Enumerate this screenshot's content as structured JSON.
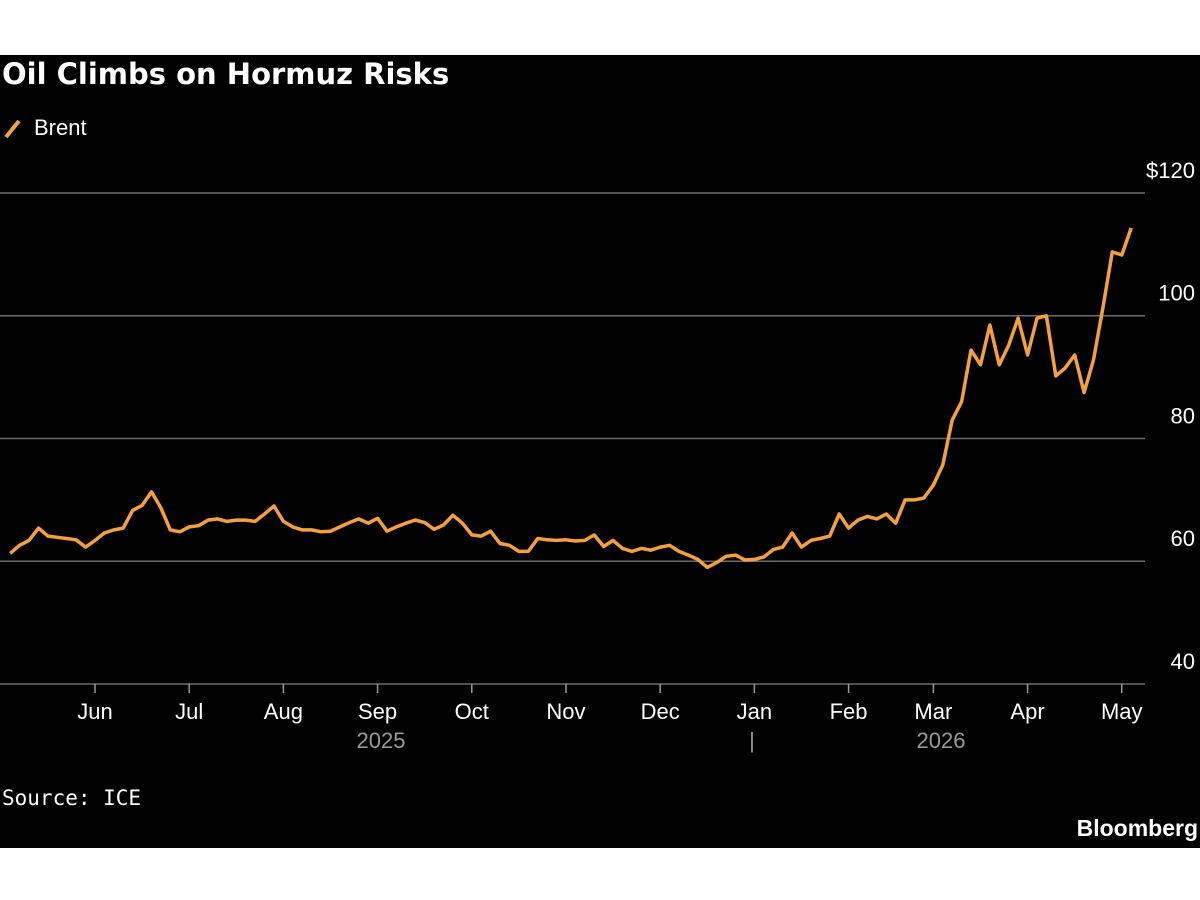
{
  "chart_data": {
    "type": "line",
    "title": "Oil Climbs on Hormuz Risks",
    "series": [
      {
        "name": "Brent",
        "color": "#f5a03e",
        "values": [
          61.3,
          62.6,
          63.4,
          65.4,
          64.1,
          63.9,
          63.7,
          63.5,
          62.3,
          63.4,
          64.6,
          65.1,
          65.4,
          68.3,
          69.1,
          71.3,
          68.7,
          65.1,
          64.8,
          65.6,
          65.8,
          66.7,
          66.9,
          66.5,
          66.7,
          66.7,
          66.5,
          67.7,
          69.0,
          66.5,
          65.6,
          65.1,
          65.1,
          64.8,
          64.9,
          65.6,
          66.3,
          66.9,
          66.2,
          67.0,
          64.9,
          65.6,
          66.2,
          66.7,
          66.3,
          65.2,
          65.9,
          67.5,
          66.2,
          64.3,
          64.1,
          64.9,
          62.9,
          62.6,
          61.6,
          61.6,
          63.7,
          63.5,
          63.4,
          63.5,
          63.3,
          63.4,
          64.3,
          62.4,
          63.4,
          62.1,
          61.6,
          62.1,
          61.8,
          62.3,
          62.6,
          61.6,
          61.0,
          60.3,
          59.0,
          59.8,
          60.8,
          61.0,
          60.2,
          60.3,
          60.7,
          61.9,
          62.3,
          64.6,
          62.3,
          63.4,
          63.7,
          64.1,
          67.7,
          65.4,
          66.7,
          67.3,
          66.9,
          67.7,
          66.2,
          70.0,
          70.0,
          70.3,
          72.4,
          75.7,
          83.0,
          86.0,
          94.4,
          92.0,
          98.5,
          92.0,
          95.2,
          99.6,
          93.6,
          99.6,
          100.0,
          90.2,
          91.5,
          93.6,
          87.5,
          92.8,
          101.3,
          110.4,
          109.9,
          114.3
        ]
      }
    ],
    "categories": [
      null,
      null,
      null,
      null,
      null,
      null,
      null,
      null,
      null,
      "Jun",
      null,
      null,
      null,
      null,
      null,
      null,
      null,
      null,
      null,
      "Jul",
      null,
      null,
      null,
      null,
      null,
      null,
      null,
      null,
      null,
      "Aug",
      null,
      null,
      null,
      null,
      null,
      null,
      null,
      null,
      null,
      "Sep",
      null,
      null,
      null,
      null,
      null,
      null,
      null,
      null,
      null,
      "Oct",
      null,
      null,
      null,
      null,
      null,
      null,
      null,
      null,
      null,
      "Nov",
      null,
      null,
      null,
      null,
      null,
      null,
      null,
      null,
      null,
      "Dec",
      null,
      null,
      null,
      null,
      null,
      null,
      null,
      null,
      null,
      "Jan",
      null,
      null,
      null,
      null,
      null,
      null,
      null,
      null,
      null,
      "Feb",
      null,
      null,
      null,
      null,
      null,
      null,
      null,
      null,
      "Mar",
      null,
      null,
      null,
      null,
      null,
      null,
      null,
      null,
      null,
      "Apr",
      null,
      null,
      null,
      null,
      null,
      null,
      null,
      null,
      null,
      "May",
      null
    ],
    "year_labels": [
      "2025",
      "2026"
    ],
    "year_separator": "|",
    "ylim": [
      40,
      120
    ],
    "yticks": [
      40,
      60,
      80,
      100,
      {
        "value": 120,
        "label": "$120"
      }
    ],
    "grid": true,
    "source": "Source: ICE",
    "brand": "Bloomberg"
  }
}
